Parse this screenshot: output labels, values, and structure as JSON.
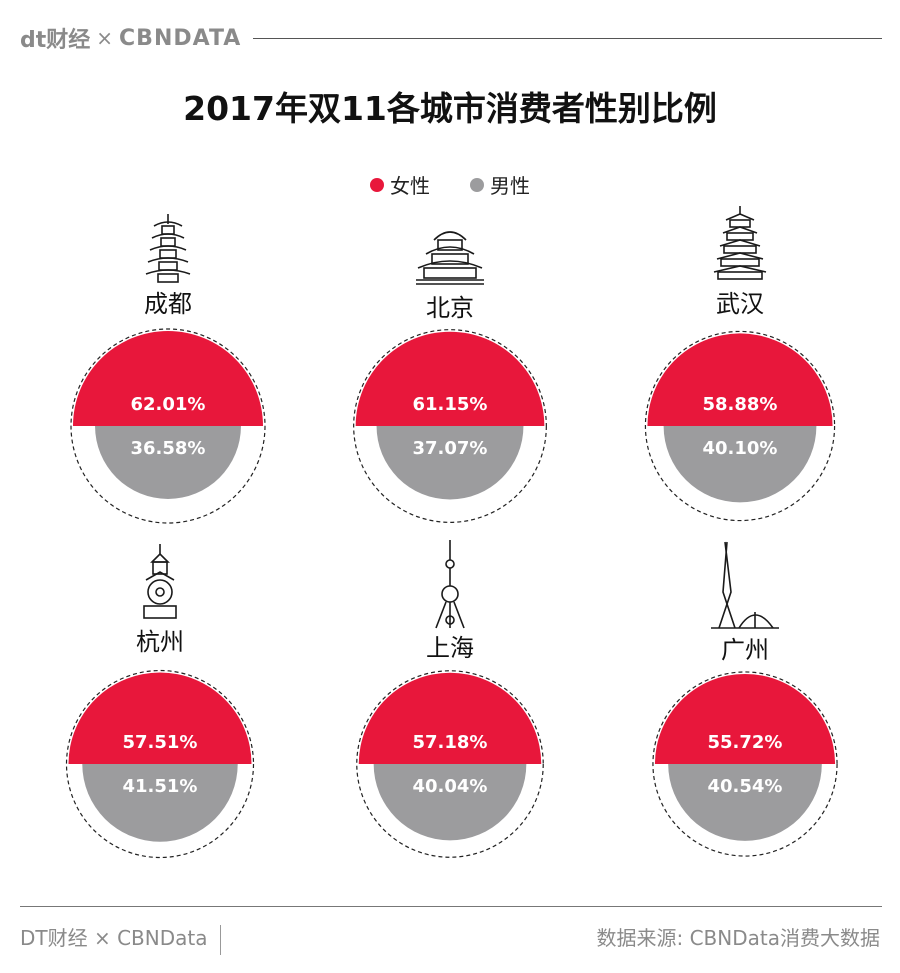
{
  "header": {
    "brand_left": "dt财经",
    "brand_times": "×",
    "brand_right": "CBNDATA"
  },
  "legend": [
    {
      "label": "女性",
      "color": "#e8173b"
    },
    {
      "label": "男性",
      "color": "#9c9c9e"
    }
  ],
  "footer": {
    "left": "DT财经 × CBNData",
    "right": "数据来源: CBNData消费大数据"
  },
  "chart_data": {
    "type": "semicircle-pair",
    "title": "2017年双11各城市消费者性别比例",
    "series": [
      {
        "name": "女性",
        "color": "#e8173b"
      },
      {
        "name": "男性",
        "color": "#9c9c9e"
      }
    ],
    "categories": [
      "成都",
      "北京",
      "武汉",
      "杭州",
      "上海",
      "广州"
    ],
    "values": {
      "女性": [
        62.01,
        61.15,
        58.88,
        57.51,
        57.18,
        55.72
      ],
      "男性": [
        36.58,
        37.07,
        40.1,
        41.51,
        40.04,
        40.54
      ]
    },
    "labels": {
      "女性": [
        "62.01%",
        "61.15%",
        "58.88%",
        "57.51%",
        "57.18%",
        "55.72%"
      ],
      "男性": [
        "36.58%",
        "37.07%",
        "40.10%",
        "41.51%",
        "40.04%",
        "40.54%"
      ]
    },
    "icons": [
      "pagoda-icon",
      "temple-of-heaven-icon",
      "yellow-crane-tower-icon",
      "leifeng-pagoda-icon",
      "oriental-pearl-tower-icon",
      "canton-tower-icon"
    ]
  }
}
